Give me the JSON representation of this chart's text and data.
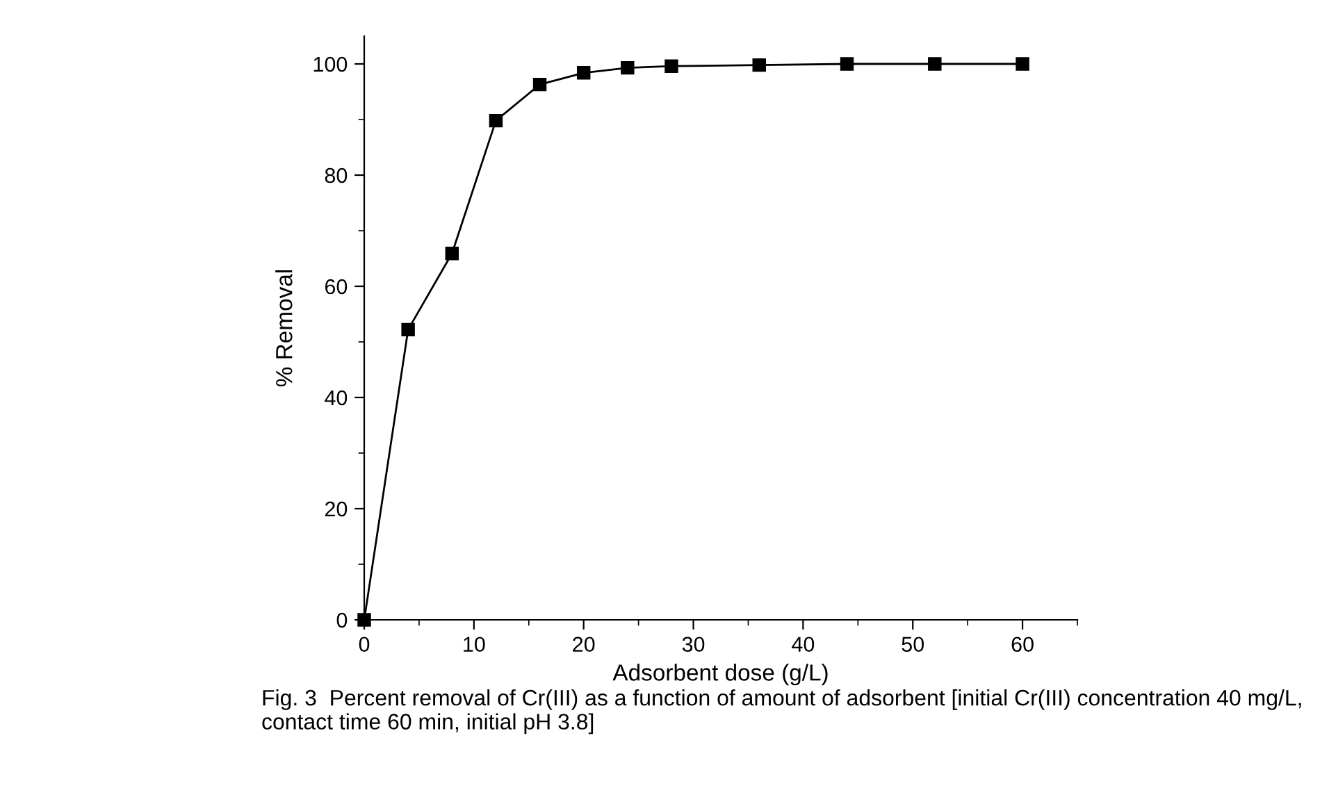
{
  "chart_data": {
    "type": "line",
    "xlabel": "Adsorbent dose (g/L)",
    "ylabel": "% Removal",
    "x": [
      0,
      4,
      8,
      12,
      16,
      20,
      24,
      28,
      36,
      44,
      52,
      60
    ],
    "series": [
      {
        "color": "#000000",
        "values": [
          0,
          52.2,
          65.9,
          89.8,
          96.3,
          98.4,
          99.3,
          99.6,
          99.8,
          100,
          100,
          100
        ]
      }
    ],
    "marker": "square",
    "line_style": "solid",
    "grid": false,
    "legend": false,
    "xlim": [
      0,
      65
    ],
    "ylim": [
      0,
      105
    ],
    "xticks": [
      0,
      {
        "value": 5,
        "label": null
      },
      10,
      {
        "value": 15,
        "label": null
      },
      20,
      {
        "value": 25,
        "label": null
      },
      30,
      {
        "value": 35,
        "label": null
      },
      40,
      {
        "value": 45,
        "label": null
      },
      50,
      {
        "value": 55,
        "label": null
      },
      60,
      {
        "value": 65,
        "label": null
      }
    ],
    "yticks": [
      0,
      {
        "value": 10,
        "label": null
      },
      20,
      {
        "value": 30,
        "label": null
      },
      40,
      {
        "value": 50,
        "label": null
      },
      60,
      {
        "value": 70,
        "label": null
      },
      80,
      {
        "value": 90,
        "label": null
      },
      100
    ],
    "annotations": [
      "Fig. 3  Percent removal of Cr(III) as a function of amount of adsorbent [initial Cr(III) concentration 40 mg/L, contact time 60 min, initial pH 3.8]"
    ]
  }
}
